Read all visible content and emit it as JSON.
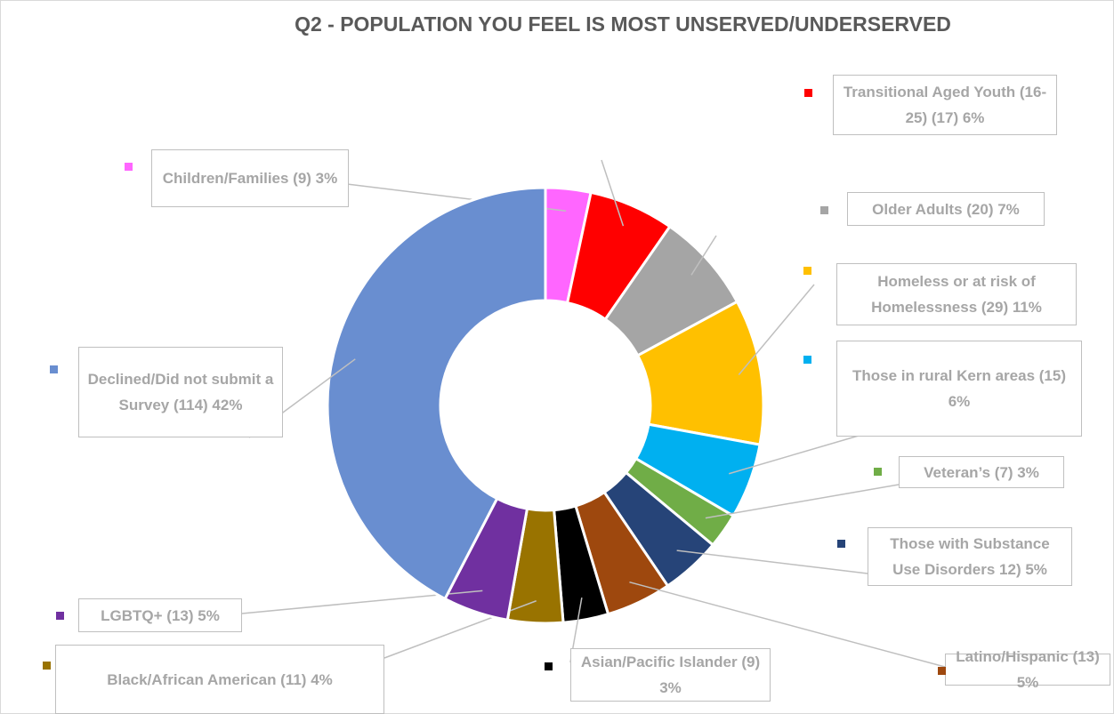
{
  "chart_data": {
    "type": "donut",
    "title": "Q2 - POPULATION YOU FEEL IS MOST UNSERVED/UNDERSERVED",
    "categories": [
      "Children/Families (9) 3%",
      "Transitional Aged Youth (16-25) (17) 6%",
      "Older Adults (20) 7%",
      "Homeless or at risk of Homelessness (29) 11%",
      "Those in rural Kern areas (15) 6%",
      "Veteran’s  (7) 3%",
      "Those with Substance Use Disorders 12) 5%",
      "Latino/Hispanic (13) 5%",
      "Asian/Pacific Islander (9) 3%",
      "Black/African American (11) 4%",
      "LGBTQ+  (13) 5%",
      "Declined/Did not submit a Survey (114) 42%"
    ],
    "values": [
      9,
      17,
      20,
      29,
      15,
      7,
      12,
      13,
      9,
      11,
      13,
      114
    ],
    "colors": [
      "#ff66ff",
      "#ff0000",
      "#a5a5a5",
      "#ffc000",
      "#00b0f0",
      "#70ad47",
      "#264478",
      "#9e480e",
      "#000000",
      "#997300",
      "#7030a0",
      "#698ed0"
    ]
  }
}
